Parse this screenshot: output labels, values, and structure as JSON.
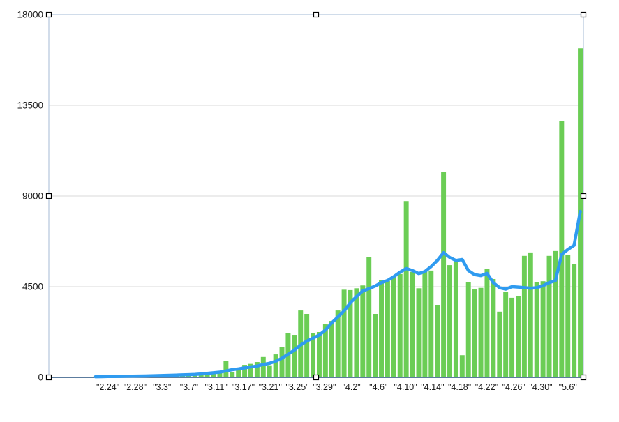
{
  "chart_data": {
    "type": "bar",
    "title": "",
    "xlabel": "",
    "ylabel": "",
    "ylim": [
      0,
      18000
    ],
    "y_ticks": [
      0,
      4500,
      9000,
      13500,
      18000
    ],
    "y_tick_labels": [
      "0",
      "4500",
      "9000",
      "13500",
      "18000"
    ],
    "x_tick_labels": [
      "\"2.24\"",
      "\"2.28\"",
      "\"3.3\"",
      "\"3.7\"",
      "\"3.11\"",
      "\"3.17\"",
      "\"3.21\"",
      "\"3.25\"",
      "\"3.29\"",
      "\"4.2\"",
      "\"4.6\"",
      "\"4.10\"",
      "\"4.14\"",
      "\"4.18\"",
      "\"4.22\"",
      "\"4.26\"",
      "\"4.30\"",
      "\"5.6\""
    ],
    "grid": true,
    "legend": "none",
    "series": [
      {
        "name": "daily-bars",
        "type": "bar",
        "color": "#6bcd55",
        "values": [
          15,
          20,
          25,
          20,
          30,
          25,
          30,
          40,
          45,
          40,
          50,
          55,
          50,
          60,
          70,
          75,
          80,
          90,
          100,
          110,
          120,
          130,
          140,
          150,
          160,
          170,
          190,
          210,
          800,
          250,
          420,
          620,
          670,
          760,
          1010,
          600,
          1140,
          1490,
          2210,
          2110,
          3320,
          3150,
          2210,
          2250,
          2630,
          2800,
          3320,
          4350,
          4330,
          4420,
          4560,
          5980,
          3150,
          4820,
          4780,
          5050,
          5130,
          8750,
          5230,
          4420,
          5260,
          5300,
          3600,
          10200,
          5570,
          5770,
          1100,
          4710,
          4360,
          4440,
          5400,
          4880,
          3260,
          4250,
          3950,
          4050,
          6030,
          6200,
          4710,
          4770,
          6030,
          6270,
          12730,
          6060,
          5640,
          16330
        ]
      },
      {
        "name": "smoothed-line",
        "type": "line",
        "color": "#2f9bf0",
        "start_index": 7,
        "values": [
          30,
          35,
          40,
          45,
          50,
          55,
          60,
          65,
          70,
          75,
          85,
          95,
          105,
          115,
          125,
          135,
          150,
          170,
          200,
          230,
          260,
          320,
          380,
          420,
          470,
          520,
          560,
          640,
          700,
          800,
          950,
          1150,
          1350,
          1600,
          1800,
          1950,
          2100,
          2350,
          2700,
          3000,
          3300,
          3700,
          4010,
          4290,
          4400,
          4530,
          4700,
          4810,
          5000,
          5220,
          5400,
          5300,
          5150,
          5250,
          5500,
          5800,
          6190,
          5950,
          5800,
          5850,
          5300,
          5100,
          5050,
          5160,
          4700,
          4450,
          4380,
          4500,
          4480,
          4450,
          4420,
          4450,
          4550,
          4700,
          4800,
          6100,
          6350,
          6550,
          8240
        ]
      }
    ],
    "layout_hints": {
      "x_label_first_bar": 9,
      "x_label_last_bar": 83,
      "gridline_color": "#d9d9d9",
      "plot_border_color": "#b3c6dd",
      "x_axis_line_color": "#27507f",
      "selection_handle_fill": "#ffffff",
      "selection_handle_stroke": "#000000"
    }
  }
}
